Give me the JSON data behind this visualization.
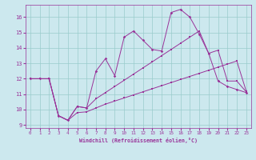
{
  "xlabel": "Windchill (Refroidissement éolien,°C)",
  "bg_color": "#cce8ee",
  "line_color": "#993399",
  "grid_color": "#99cccc",
  "xlim": [
    -0.5,
    23.5
  ],
  "ylim": [
    8.8,
    16.8
  ],
  "yticks": [
    9,
    10,
    11,
    12,
    13,
    14,
    15,
    16
  ],
  "xticks": [
    0,
    1,
    2,
    3,
    4,
    5,
    6,
    7,
    8,
    9,
    10,
    11,
    12,
    13,
    14,
    15,
    16,
    17,
    18,
    19,
    20,
    21,
    22,
    23
  ],
  "spiky_x": [
    0,
    1,
    2,
    3,
    4,
    5,
    6,
    7,
    8,
    9,
    10,
    11,
    12,
    13,
    14,
    15,
    16,
    17,
    18,
    19,
    20,
    21,
    22,
    23
  ],
  "spiky_y": [
    12.0,
    12.0,
    12.0,
    9.6,
    9.3,
    10.2,
    10.1,
    12.5,
    13.3,
    12.2,
    14.7,
    15.1,
    14.5,
    13.9,
    13.8,
    16.3,
    16.5,
    16.0,
    14.9,
    13.65,
    11.85,
    11.5,
    11.3,
    11.1
  ],
  "upper_x": [
    0,
    1,
    2,
    3,
    4,
    5,
    6,
    7,
    8,
    9,
    10,
    11,
    12,
    13,
    14,
    15,
    16,
    17,
    18,
    19,
    20,
    21,
    22,
    23
  ],
  "upper_y": [
    12.0,
    12.0,
    12.0,
    9.6,
    9.3,
    10.2,
    10.1,
    10.7,
    11.1,
    11.5,
    11.9,
    12.3,
    12.7,
    13.1,
    13.5,
    13.9,
    14.3,
    14.7,
    15.1,
    13.65,
    13.85,
    11.85,
    11.85,
    11.15
  ],
  "lower_x": [
    0,
    1,
    2,
    3,
    4,
    5,
    6,
    7,
    8,
    9,
    10,
    11,
    12,
    13,
    14,
    15,
    16,
    17,
    18,
    19,
    20,
    21,
    22,
    23
  ],
  "lower_y": [
    12.0,
    12.0,
    12.0,
    9.6,
    9.3,
    9.8,
    9.85,
    10.1,
    10.35,
    10.55,
    10.75,
    10.95,
    11.15,
    11.35,
    11.55,
    11.75,
    11.95,
    12.15,
    12.35,
    12.55,
    12.75,
    12.95,
    13.15,
    11.2
  ]
}
